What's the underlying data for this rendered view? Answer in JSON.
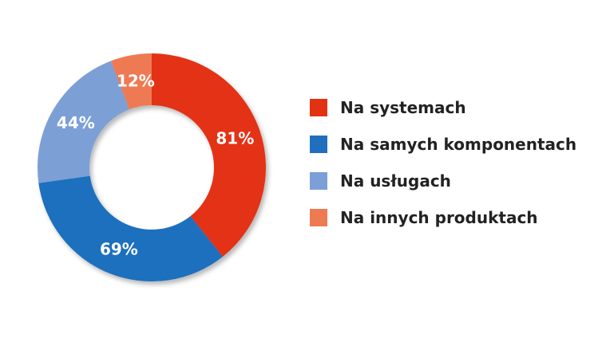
{
  "chart_data": {
    "type": "pie",
    "title": "",
    "slices": [
      {
        "label": "Na systemach",
        "value": 81,
        "value_label": "81%",
        "color": "#e33212"
      },
      {
        "label": "Na samych komponentach",
        "value": 69,
        "value_label": "69%",
        "color": "#1f6fbe"
      },
      {
        "label": "Na usługach",
        "value": 44,
        "value_label": "44%",
        "color": "#7b9fd6"
      },
      {
        "label": "Na innych produktach",
        "value": 12,
        "value_label": "12%",
        "color": "#ee7a52"
      }
    ],
    "donut": true,
    "legend_position": "right"
  }
}
